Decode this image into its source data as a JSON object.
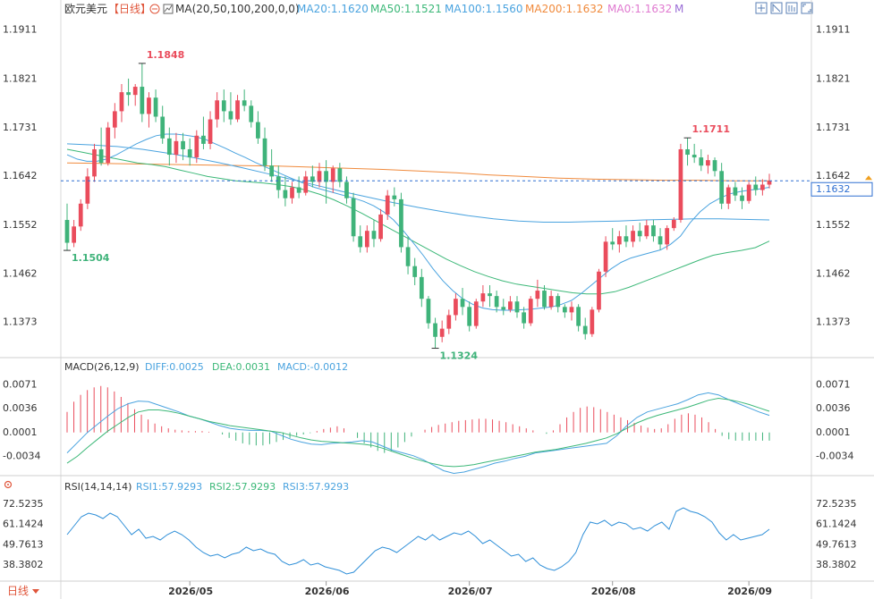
{
  "header": {
    "symbol": "欧元美元",
    "period_tag": "【日线】",
    "ma_label": "MA(20,50,100,200,0,0)",
    "ma_items": [
      {
        "text": "MA20:1.1620",
        "color": "#4aa3df"
      },
      {
        "text": "MA50:1.1521",
        "color": "#3cb878"
      },
      {
        "text": "MA100:1.1560",
        "color": "#4aa3df"
      },
      {
        "text": "MA200:1.1632",
        "color": "#f08a3c"
      },
      {
        "text": "MA0:1.1632",
        "color": "#e07ad0"
      },
      {
        "text": "M",
        "color": "#9b6fd6"
      }
    ],
    "toolbar_icons": [
      "zoom-in-icon",
      "chart-settings-icon",
      "chart-type-icon",
      "fullscreen-icon"
    ]
  },
  "colors": {
    "up": "#ea4c5c",
    "down": "#3fb37a",
    "ma20": "#4aa3df",
    "ma50": "#3cb878",
    "ma100": "#4aa3df",
    "ma200": "#f08a3c",
    "last_price": "#2f6fd1",
    "axis_text": "#333333",
    "grid": "#e6e6e6"
  },
  "price_panel": {
    "left_ticks": [
      "1.1911",
      "1.1821",
      "1.1731",
      "1.1642",
      "1.1552",
      "1.1462",
      "1.1373"
    ],
    "right_ticks": [
      "1.1911",
      "1.1821",
      "1.1731",
      "1.1642",
      "1.1552",
      "1.1462",
      "1.1373"
    ],
    "last_price_label": "1.1632",
    "annotations": [
      {
        "text": "1.1848",
        "color": "#ea4c5c"
      },
      {
        "text": "1.1504",
        "color": "#3fb37a"
      },
      {
        "text": "1.1324",
        "color": "#3fb37a"
      },
      {
        "text": "1.1711",
        "color": "#ea4c5c"
      }
    ]
  },
  "macd_panel": {
    "label": "MACD(26,12,9)",
    "diff": "DIFF:0.0025",
    "dea": "DEA:0.0031",
    "macd": "MACD:-0.0012",
    "ticks_left": [
      "0.0071",
      "0.0036",
      "0.0001",
      "-0.0034"
    ],
    "ticks_right": [
      "0.0071",
      "0.0036",
      "0.0001",
      "-0.0034"
    ]
  },
  "rsi_panel": {
    "label": "RSI(14,14,14)",
    "rsi1": "RSI1:57.9293",
    "rsi2": "RSI2:57.9293",
    "rsi3": "RSI3:57.9293",
    "ticks_left": [
      "72.5235",
      "61.1424",
      "49.7613",
      "38.3802"
    ],
    "ticks_right": [
      "72.5235",
      "61.1424",
      "49.7613",
      "38.3802"
    ]
  },
  "x_axis": {
    "period_button": "日线",
    "labels": [
      "2026/05",
      "2026/06",
      "2026/07",
      "2026/08",
      "2026/09"
    ]
  },
  "chart_data": {
    "type": "candlestick",
    "symbol": "欧元美元",
    "period": "日线",
    "price_range": [
      1.1315,
      1.1935
    ],
    "candles": [
      [
        1.156,
        1.159,
        1.1504,
        1.1518
      ],
      [
        1.1518,
        1.156,
        1.151,
        1.1548
      ],
      [
        1.1548,
        1.1598,
        1.154,
        1.159
      ],
      [
        1.159,
        1.1655,
        1.158,
        1.164
      ],
      [
        1.164,
        1.17,
        1.163,
        1.169
      ],
      [
        1.169,
        1.173,
        1.166,
        1.1665
      ],
      [
        1.1665,
        1.174,
        1.166,
        1.173
      ],
      [
        1.173,
        1.1775,
        1.171,
        1.176
      ],
      [
        1.176,
        1.181,
        1.174,
        1.1795
      ],
      [
        1.1795,
        1.182,
        1.177,
        1.179
      ],
      [
        1.179,
        1.181,
        1.177,
        1.1805
      ],
      [
        1.1805,
        1.1848,
        1.174,
        1.1755
      ],
      [
        1.1755,
        1.1795,
        1.173,
        1.1785
      ],
      [
        1.1785,
        1.18,
        1.174,
        1.175
      ],
      [
        1.175,
        1.177,
        1.17,
        1.171
      ],
      [
        1.171,
        1.173,
        1.166,
        1.168
      ],
      [
        1.168,
        1.172,
        1.1665,
        1.1705
      ],
      [
        1.1705,
        1.172,
        1.167,
        1.169
      ],
      [
        1.169,
        1.171,
        1.166,
        1.1675
      ],
      [
        1.1675,
        1.1725,
        1.1665,
        1.1715
      ],
      [
        1.1715,
        1.175,
        1.169,
        1.17
      ],
      [
        1.17,
        1.176,
        1.169,
        1.1745
      ],
      [
        1.1745,
        1.1795,
        1.173,
        1.178
      ],
      [
        1.178,
        1.18,
        1.174,
        1.176
      ],
      [
        1.176,
        1.1795,
        1.1735,
        1.1745
      ],
      [
        1.1745,
        1.179,
        1.174,
        1.178
      ],
      [
        1.178,
        1.18,
        1.176,
        1.177
      ],
      [
        1.177,
        1.178,
        1.173,
        1.174
      ],
      [
        1.174,
        1.176,
        1.17,
        1.171
      ],
      [
        1.171,
        1.173,
        1.165,
        1.166
      ],
      [
        1.166,
        1.169,
        1.163,
        1.164
      ],
      [
        1.164,
        1.166,
        1.16,
        1.1615
      ],
      [
        1.1615,
        1.164,
        1.1585,
        1.16
      ],
      [
        1.16,
        1.163,
        1.159,
        1.162
      ],
      [
        1.162,
        1.164,
        1.16,
        1.161
      ],
      [
        1.161,
        1.165,
        1.1605,
        1.164
      ],
      [
        1.164,
        1.166,
        1.162,
        1.163
      ],
      [
        1.163,
        1.1665,
        1.162,
        1.165
      ],
      [
        1.165,
        1.167,
        1.159,
        1.163
      ],
      [
        1.163,
        1.166,
        1.161,
        1.1655
      ],
      [
        1.1655,
        1.1665,
        1.162,
        1.163
      ],
      [
        1.163,
        1.164,
        1.159,
        1.16
      ],
      [
        1.16,
        1.161,
        1.152,
        1.153
      ],
      [
        1.153,
        1.155,
        1.15,
        1.151
      ],
      [
        1.151,
        1.155,
        1.15,
        1.154
      ],
      [
        1.154,
        1.156,
        1.151,
        1.1525
      ],
      [
        1.1525,
        1.158,
        1.152,
        1.157
      ],
      [
        1.157,
        1.1615,
        1.156,
        1.1605
      ],
      [
        1.1605,
        1.162,
        1.1585,
        1.1598
      ],
      [
        1.1598,
        1.161,
        1.15,
        1.151
      ],
      [
        1.151,
        1.153,
        1.146,
        1.1475
      ],
      [
        1.1475,
        1.149,
        1.144,
        1.1455
      ],
      [
        1.1455,
        1.147,
        1.14,
        1.1415
      ],
      [
        1.1415,
        1.142,
        1.136,
        1.137
      ],
      [
        1.137,
        1.138,
        1.1324,
        1.1345
      ],
      [
        1.1345,
        1.1375,
        1.1335,
        1.136
      ],
      [
        1.136,
        1.1395,
        1.135,
        1.1385
      ],
      [
        1.1385,
        1.1425,
        1.1375,
        1.1415
      ],
      [
        1.1415,
        1.1435,
        1.1385,
        1.14
      ],
      [
        1.14,
        1.141,
        1.1355,
        1.1365
      ],
      [
        1.1365,
        1.1415,
        1.136,
        1.141
      ],
      [
        1.141,
        1.144,
        1.14,
        1.1425
      ],
      [
        1.1425,
        1.144,
        1.14,
        1.142
      ],
      [
        1.142,
        1.143,
        1.139,
        1.14
      ],
      [
        1.14,
        1.1415,
        1.1385,
        1.1395
      ],
      [
        1.1395,
        1.142,
        1.139,
        1.141
      ],
      [
        1.141,
        1.142,
        1.138,
        1.139
      ],
      [
        1.139,
        1.14,
        1.136,
        1.137
      ],
      [
        1.137,
        1.142,
        1.1365,
        1.1415
      ],
      [
        1.1415,
        1.145,
        1.14,
        1.143
      ],
      [
        1.143,
        1.144,
        1.1395,
        1.14
      ],
      [
        1.14,
        1.143,
        1.1395,
        1.142
      ],
      [
        1.142,
        1.1425,
        1.139,
        1.14
      ],
      [
        1.14,
        1.1405,
        1.138,
        1.139
      ],
      [
        1.139,
        1.141,
        1.1375,
        1.14
      ],
      [
        1.14,
        1.1405,
        1.1355,
        1.1365
      ],
      [
        1.1365,
        1.138,
        1.134,
        1.135
      ],
      [
        1.135,
        1.14,
        1.1345,
        1.1395
      ],
      [
        1.1395,
        1.147,
        1.139,
        1.1465
      ],
      [
        1.1465,
        1.153,
        1.1455,
        1.152
      ],
      [
        1.152,
        1.1545,
        1.1505,
        1.1515
      ],
      [
        1.1515,
        1.154,
        1.15,
        1.153
      ],
      [
        1.153,
        1.155,
        1.151,
        1.152
      ],
      [
        1.152,
        1.155,
        1.151,
        1.154
      ],
      [
        1.154,
        1.1555,
        1.152,
        1.153
      ],
      [
        1.153,
        1.156,
        1.1525,
        1.155
      ],
      [
        1.155,
        1.156,
        1.152,
        1.153
      ],
      [
        1.153,
        1.1545,
        1.1505,
        1.1515
      ],
      [
        1.1515,
        1.155,
        1.1505,
        1.1545
      ],
      [
        1.1545,
        1.1565,
        1.154,
        1.156
      ],
      [
        1.156,
        1.17,
        1.1555,
        1.169
      ],
      [
        1.169,
        1.1711,
        1.166,
        1.168
      ],
      [
        1.168,
        1.17,
        1.1665,
        1.1675
      ],
      [
        1.1675,
        1.169,
        1.165,
        1.166
      ],
      [
        1.166,
        1.168,
        1.1645,
        1.167
      ],
      [
        1.167,
        1.1675,
        1.164,
        1.165
      ],
      [
        1.165,
        1.1665,
        1.158,
        1.159
      ],
      [
        1.159,
        1.1625,
        1.158,
        1.162
      ],
      [
        1.162,
        1.163,
        1.1595,
        1.1605
      ],
      [
        1.1605,
        1.162,
        1.158,
        1.1595
      ],
      [
        1.1595,
        1.163,
        1.159,
        1.1625
      ],
      [
        1.1625,
        1.164,
        1.1605,
        1.1615
      ],
      [
        1.1615,
        1.1635,
        1.1605,
        1.1625
      ],
      [
        1.1625,
        1.1645,
        1.1618,
        1.1632
      ]
    ],
    "ma20": [
      1.168,
      1.1672,
      1.1668,
      1.1668,
      1.1672,
      1.168,
      1.169,
      1.17,
      1.1708,
      1.1715,
      1.1718,
      1.1718,
      1.1716,
      1.1713,
      1.1708,
      1.17,
      1.1692,
      1.1683,
      1.1675,
      1.1666,
      1.1658,
      1.165,
      1.1642,
      1.1634,
      1.1627,
      1.162,
      1.1615,
      1.161,
      1.1605,
      1.16,
      1.1594,
      1.1586,
      1.1575,
      1.156,
      1.154,
      1.1518,
      1.1495,
      1.147,
      1.1448,
      1.143,
      1.1415,
      1.1405,
      1.1398,
      1.1395,
      1.1394,
      1.1394,
      1.1395,
      1.1396,
      1.1398,
      1.14,
      1.1405,
      1.1412,
      1.1425,
      1.144,
      1.1455,
      1.147,
      1.1482,
      1.149,
      1.1495,
      1.15,
      1.1505,
      1.1515,
      1.153,
      1.1555,
      1.1575,
      1.159,
      1.16,
      1.1608,
      1.1612,
      1.1615,
      1.1617,
      1.162
    ],
    "ma50": [
      1.169,
      1.1685,
      1.168,
      1.1675,
      1.167,
      1.1665,
      1.1662,
      1.1658,
      1.1652,
      1.1646,
      1.164,
      1.1636,
      1.1632,
      1.163,
      1.1628,
      1.1625,
      1.1621,
      1.1615,
      1.1607,
      1.1597,
      1.1585,
      1.1572,
      1.1558,
      1.1544,
      1.153,
      1.1516,
      1.1502,
      1.1488,
      1.1476,
      1.1465,
      1.1456,
      1.1448,
      1.1442,
      1.1438,
      1.1434,
      1.143,
      1.1426,
      1.1424,
      1.1424,
      1.1428,
      1.1436,
      1.1446,
      1.1456,
      1.1466,
      1.1476,
      1.1486,
      1.1495,
      1.15,
      1.1504,
      1.1509,
      1.1521
    ],
    "ma100": [
      1.17,
      1.1698,
      1.1695,
      1.169,
      1.1683,
      1.1675,
      1.1666,
      1.1656,
      1.1645,
      1.1634,
      1.1623,
      1.1612,
      1.1602,
      1.1592,
      1.1583,
      1.1575,
      1.1568,
      1.1562,
      1.1558,
      1.1556,
      1.1556,
      1.1557,
      1.1558,
      1.156,
      1.1561,
      1.1562,
      1.1562,
      1.1561,
      1.156
    ],
    "ma200": [
      1.1665,
      1.1664,
      1.1663,
      1.1662,
      1.1661,
      1.166,
      1.1659,
      1.1657,
      1.1655,
      1.1653,
      1.165,
      1.1647,
      1.1643,
      1.164,
      1.1637,
      1.1635,
      1.1634,
      1.1633,
      1.1633,
      1.1632,
      1.1632
    ],
    "last_price": 1.1632,
    "macd_range": [
      -0.0058,
      0.0086
    ],
    "macd_hist": [
      0.003,
      0.0045,
      0.0055,
      0.0062,
      0.0066,
      0.0068,
      0.0066,
      0.006,
      0.0052,
      0.0043,
      0.0034,
      0.0026,
      0.0019,
      0.0013,
      0.0009,
      0.0006,
      0.0004,
      0.0003,
      0.0002,
      0.0002,
      0.0002,
      0.0001,
      0.0,
      -0.0003,
      -0.0008,
      -0.0012,
      -0.0016,
      -0.0018,
      -0.0019,
      -0.0019,
      -0.0017,
      -0.0014,
      -0.0011,
      -0.0008,
      -0.0005,
      -0.0003,
      -0.0001,
      0.0002,
      0.0005,
      0.0007,
      0.0009,
      0.0006,
      0.0,
      -0.0008,
      -0.0016,
      -0.0022,
      -0.0027,
      -0.003,
      -0.0028,
      -0.0022,
      -0.0014,
      -0.0006,
      0.0,
      0.0004,
      0.0008,
      0.0011,
      0.0013,
      0.0015,
      0.0017,
      0.0018,
      0.0019,
      0.002,
      0.002,
      0.0019,
      0.0017,
      0.0015,
      0.0012,
      0.0009,
      0.0006,
      0.0003,
      0.0,
      -0.0002,
      0.0003,
      0.0012,
      0.0022,
      0.003,
      0.0036,
      0.0038,
      0.0037,
      0.0034,
      0.003,
      0.0026,
      0.0022,
      0.0018,
      0.0014,
      0.001,
      0.0007,
      0.0005,
      0.0006,
      0.0012,
      0.002,
      0.0026,
      0.0028,
      0.0026,
      0.0022,
      0.0015,
      0.0005,
      -0.0005,
      -0.001,
      -0.0012,
      -0.0012,
      -0.0012,
      -0.0012,
      -0.0012,
      -0.0012
    ],
    "macd_diff": [
      -0.003,
      -0.0015,
      0.0,
      0.0012,
      0.0024,
      0.0035,
      0.0042,
      0.0046,
      0.0045,
      0.004,
      0.0035,
      0.003,
      0.0024,
      0.002,
      0.0015,
      0.001,
      0.0006,
      0.0004,
      0.0003,
      0.0003,
      0.0002,
      -0.0004,
      -0.001,
      -0.0014,
      -0.0017,
      -0.0018,
      -0.0016,
      -0.0015,
      -0.0014,
      -0.0012,
      -0.0014,
      -0.002,
      -0.0026,
      -0.003,
      -0.0034,
      -0.004,
      -0.0048,
      -0.0056,
      -0.006,
      -0.0058,
      -0.0054,
      -0.005,
      -0.0045,
      -0.0042,
      -0.0038,
      -0.0035,
      -0.003,
      -0.0028,
      -0.0026,
      -0.0024,
      -0.0022,
      -0.002,
      -0.0018,
      -0.0016,
      -0.0005,
      0.001,
      0.0022,
      0.003,
      0.0034,
      0.0038,
      0.0042,
      0.0048,
      0.0055,
      0.0058,
      0.0055,
      0.0048,
      0.0042,
      0.0036,
      0.003,
      0.0025
    ],
    "macd_dea": [
      -0.0045,
      -0.0035,
      -0.0022,
      -0.001,
      0.0002,
      0.0012,
      0.0022,
      0.003,
      0.0033,
      0.0033,
      0.0031,
      0.0028,
      0.0024,
      0.002,
      0.0016,
      0.0013,
      0.001,
      0.0008,
      0.0006,
      0.0004,
      0.0002,
      0.0,
      -0.0004,
      -0.0008,
      -0.0011,
      -0.0013,
      -0.0014,
      -0.0015,
      -0.0016,
      -0.0017,
      -0.0019,
      -0.0023,
      -0.0028,
      -0.0033,
      -0.0038,
      -0.0042,
      -0.0046,
      -0.0049,
      -0.005,
      -0.0049,
      -0.0047,
      -0.0044,
      -0.0041,
      -0.0038,
      -0.0035,
      -0.0032,
      -0.0029,
      -0.0027,
      -0.0025,
      -0.0022,
      -0.0019,
      -0.0016,
      -0.0012,
      -0.0008,
      -0.0002,
      0.0006,
      0.0014,
      0.002,
      0.0025,
      0.0029,
      0.0033,
      0.0037,
      0.0042,
      0.0047,
      0.005,
      0.0048,
      0.0045,
      0.0041,
      0.0036,
      0.0031
    ],
    "rsi_range": [
      30,
      78
    ],
    "rsi": [
      55,
      60,
      65,
      67,
      66,
      64,
      67,
      65,
      60,
      55,
      58,
      53,
      54,
      52,
      55,
      57,
      55,
      52,
      48,
      45,
      43,
      44,
      42,
      44,
      45,
      48,
      46,
      47,
      45,
      44,
      40,
      38,
      39,
      41,
      38,
      39,
      37,
      36,
      35,
      33,
      34,
      38,
      42,
      46,
      48,
      47,
      45,
      48,
      51,
      54,
      52,
      55,
      52,
      54,
      56,
      55,
      57,
      54,
      50,
      52,
      49,
      46,
      43,
      44,
      40,
      42,
      38,
      36,
      35,
      37,
      40,
      45,
      55,
      62,
      61,
      63,
      60,
      62,
      61,
      58,
      59,
      57,
      60,
      62,
      58,
      68,
      70,
      68,
      67,
      65,
      62,
      56,
      52,
      55,
      52,
      53,
      54,
      55,
      58
    ]
  }
}
